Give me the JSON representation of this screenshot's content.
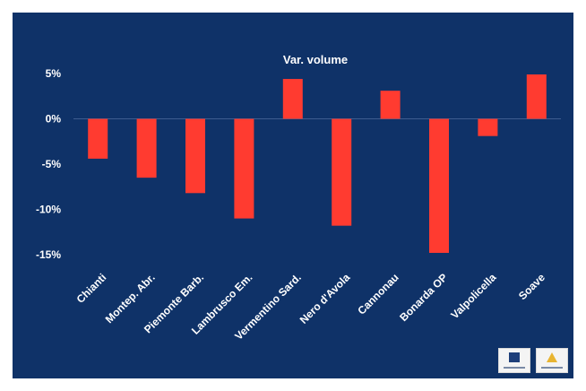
{
  "chart_data": {
    "type": "bar",
    "title": "Var. volume",
    "categories": [
      "Chianti",
      "Montep. Abr.",
      "Piemonte Barb.",
      "Lambrusco Em.",
      "Vermentino Sard.",
      "Nero d'Avola",
      "Cannonau",
      "Bonarda OP",
      "Valpolicella",
      "Soave"
    ],
    "series": [
      {
        "values": [
          -4.4,
          -6.5,
          -8.2,
          -11.0,
          4.4,
          -11.8,
          3.1,
          -14.8,
          -1.9,
          4.9
        ]
      }
    ],
    "ylim": [
      -15,
      5
    ],
    "yticks": [
      5,
      0,
      -5,
      -10,
      -15
    ],
    "ytick_labels": [
      "5%",
      "0%",
      "-5%",
      "-10%",
      "-15%"
    ],
    "grid": false,
    "legend": "none",
    "colors": {
      "background": "#0f3268",
      "bar": "#ff3b30",
      "text": "#ffffff",
      "gridline": "#3e5d8f"
    }
  }
}
